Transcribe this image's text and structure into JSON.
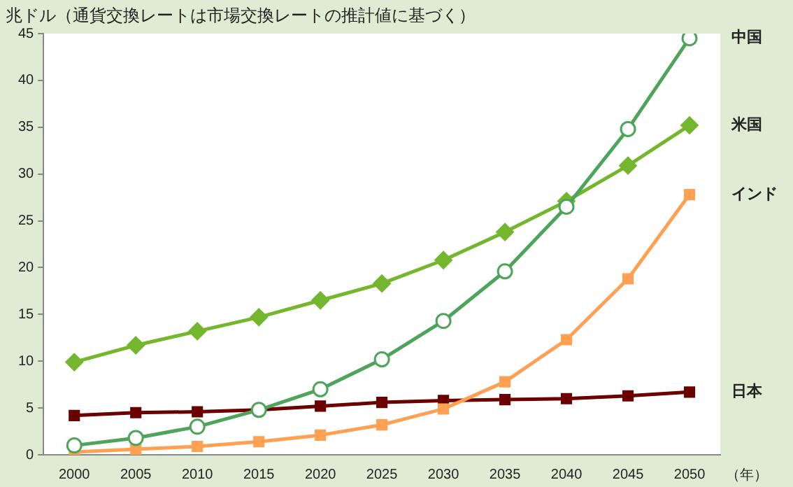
{
  "chart_data": {
    "type": "line",
    "ylabel": "兆ドル（通貨交換レートは市場交換レートの推計値に基づく）",
    "xlabel": "（年）",
    "categories": [
      "2000",
      "2005",
      "2010",
      "2015",
      "2020",
      "2025",
      "2030",
      "2035",
      "2040",
      "2045",
      "2050"
    ],
    "series": [
      {
        "name": "中国",
        "color": "#4ea45a",
        "marker": "circle",
        "values": [
          1.0,
          1.8,
          3.0,
          4.8,
          7.0,
          10.2,
          14.3,
          19.6,
          26.5,
          34.8,
          44.5
        ]
      },
      {
        "name": "米国",
        "color": "#74b72e",
        "marker": "diamond",
        "values": [
          9.9,
          11.7,
          13.2,
          14.7,
          16.5,
          18.3,
          20.8,
          23.8,
          27.1,
          30.9,
          35.2
        ]
      },
      {
        "name": "インド",
        "color": "#ffa052",
        "marker": "square",
        "values": [
          0.3,
          0.6,
          0.9,
          1.4,
          2.1,
          3.2,
          4.9,
          7.8,
          12.3,
          18.8,
          27.8
        ]
      },
      {
        "name": "日本",
        "color": "#6b0000",
        "marker": "square",
        "values": [
          4.2,
          4.5,
          4.6,
          4.8,
          5.2,
          5.6,
          5.8,
          5.9,
          6.0,
          6.3,
          6.7
        ]
      }
    ],
    "ylim": [
      0,
      45
    ],
    "yticks": [
      0,
      5,
      10,
      15,
      20,
      25,
      30,
      35,
      40,
      45
    ],
    "grid": false,
    "legend": false
  }
}
